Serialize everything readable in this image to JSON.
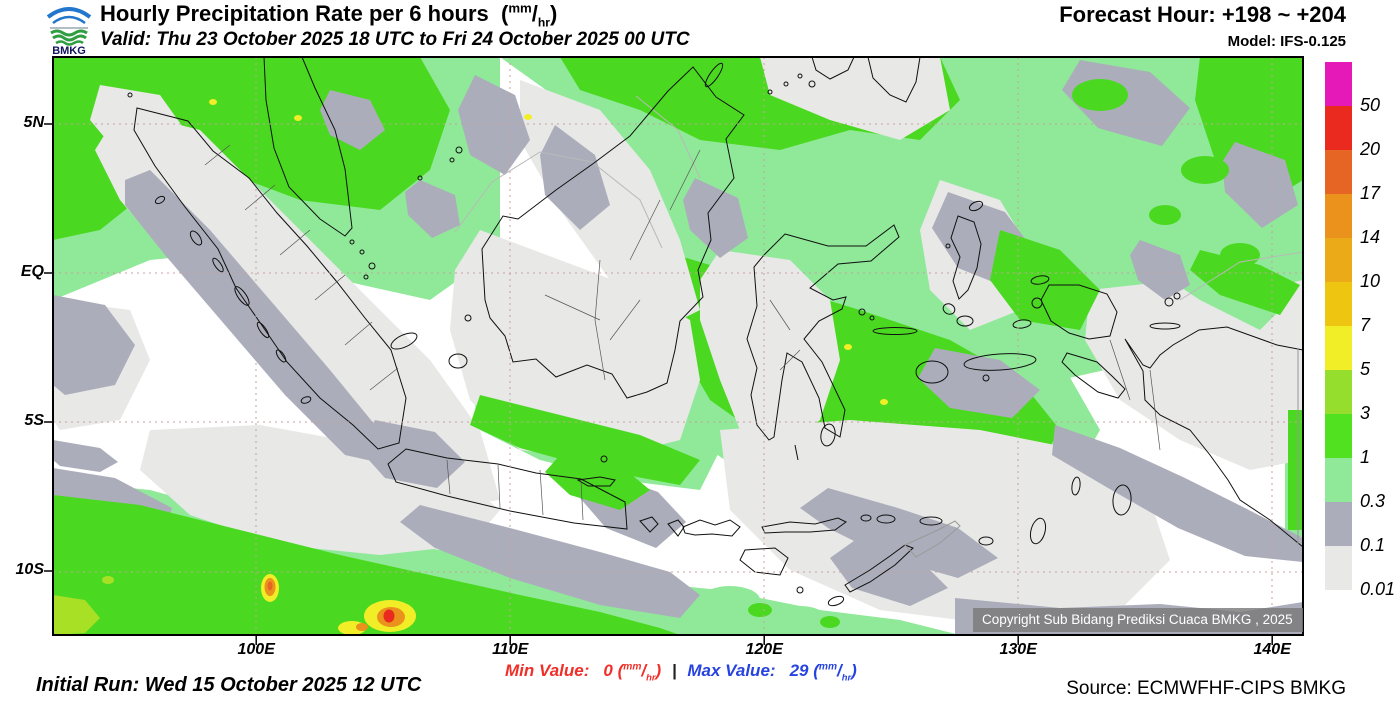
{
  "header": {
    "logo_text": "BMKG",
    "title": "Hourly Precipitation Rate per 6 hours",
    "valid": "Valid: Thu 23 October 2025 18 UTC to Fri 24 October 2025 00 UTC",
    "forecast_hour": "Forecast Hour: +198 ~ +204",
    "model": "Model: IFS-0.125"
  },
  "unit": {
    "open": "(",
    "num": "mm",
    "slash": "/",
    "den": "hr",
    "close": ")"
  },
  "colorbar": {
    "levels": [
      "50",
      "20",
      "17",
      "14",
      "10",
      "7",
      "5",
      "3",
      "1",
      "0.3",
      "0.1",
      "0.01"
    ],
    "colors": [
      "#e519b7",
      "#ea2a1f",
      "#e66524",
      "#eb921c",
      "#ebaa17",
      "#eec511",
      "#f1ee27",
      "#95de2e",
      "#52e120",
      "#8fe998",
      "#abaeba",
      "#e8e8e7"
    ]
  },
  "axes": {
    "lat_ticks": [
      {
        "label": "5N",
        "deg": 5
      },
      {
        "label": "EQ",
        "deg": 0
      },
      {
        "label": "5S",
        "deg": -5
      },
      {
        "label": "10S",
        "deg": -10
      }
    ],
    "lon_ticks": [
      {
        "label": "100E",
        "deg": 100
      },
      {
        "label": "110E",
        "deg": 110
      },
      {
        "label": "120E",
        "deg": 120
      },
      {
        "label": "130E",
        "deg": 130
      },
      {
        "label": "140E",
        "deg": 140
      }
    ]
  },
  "map_overlay": {
    "copyright": "Copyright Sub Bidang Prediksi Cuaca BMKG , 2025"
  },
  "footer": {
    "initial_run": "Initial Run: Wed 15 October 2025 12 UTC",
    "min_label": "Min Value:",
    "min_value": "0",
    "separator": "|",
    "max_label": "Max Value:",
    "max_value": "29",
    "source": "Source: ECMWFHF-CIPS BMKG",
    "min_color": "#f02f28",
    "max_color": "#2743e0"
  }
}
